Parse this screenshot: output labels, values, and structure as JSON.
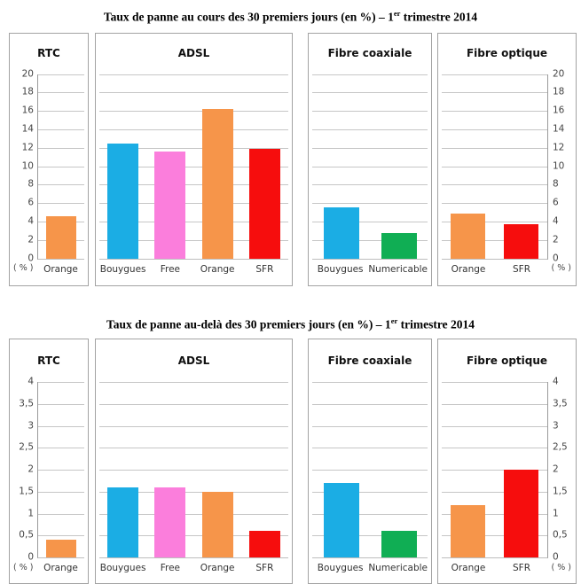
{
  "colors": {
    "Bouygues": "#1BADE4",
    "Free": "#FB7EDC",
    "Orange": "#F6954A",
    "SFR": "#F60D0D",
    "Numericable": "#10AE54"
  },
  "chart_data": [
    {
      "type": "bar",
      "title": "Taux de panne au cours des 30 premiers jours (en %) – 1er trimestre 2014",
      "title_prefix": "Taux de panne au cours des 30 premiers jours (en %) – 1",
      "title_sup": "er",
      "title_suffix": " trimestre 2014",
      "ylabel": "( % )",
      "ylim": [
        0,
        20
      ],
      "ytick_step": 2,
      "ytick_labels_top_to_bottom": [
        "20",
        "18",
        "16",
        "14",
        "12",
        "10",
        "8",
        "6",
        "4",
        "2",
        "0"
      ],
      "grid": true,
      "panels": [
        {
          "group": "RTC",
          "axis_side": "left",
          "categories": [
            "Orange"
          ],
          "values": [
            4.6
          ]
        },
        {
          "group": "ADSL",
          "axis_side": "none",
          "categories": [
            "Bouygues",
            "Free",
            "Orange",
            "SFR"
          ],
          "values": [
            12.5,
            11.6,
            16.2,
            11.9
          ]
        },
        {
          "group": "Fibre coaxiale",
          "axis_side": "none",
          "categories": [
            "Bouygues",
            "Numericable"
          ],
          "values": [
            5.5,
            2.7
          ]
        },
        {
          "group": "Fibre optique",
          "axis_side": "right",
          "categories": [
            "Orange",
            "SFR"
          ],
          "values": [
            4.9,
            3.7
          ]
        }
      ]
    },
    {
      "type": "bar",
      "title": "Taux de panne au-delà des 30 premiers jours (en %) – 1er trimestre 2014",
      "title_prefix": "Taux de panne au-delà des 30 premiers jours (en %) – 1",
      "title_sup": "er",
      "title_suffix": " trimestre 2014",
      "ylabel": "( % )",
      "ylim": [
        0,
        4
      ],
      "ytick_step": 0.5,
      "ytick_labels_top_to_bottom": [
        "4",
        "3,5",
        "3",
        "2,5",
        "2",
        "1,5",
        "1",
        "0,5",
        "0"
      ],
      "grid": true,
      "panels": [
        {
          "group": "RTC",
          "axis_side": "left",
          "categories": [
            "Orange"
          ],
          "values": [
            0.4
          ]
        },
        {
          "group": "ADSL",
          "axis_side": "none",
          "categories": [
            "Bouygues",
            "Free",
            "Orange",
            "SFR"
          ],
          "values": [
            1.6,
            1.6,
            1.5,
            0.6
          ]
        },
        {
          "group": "Fibre coaxiale",
          "axis_side": "none",
          "categories": [
            "Bouygues",
            "Numericable"
          ],
          "values": [
            1.7,
            0.6
          ]
        },
        {
          "group": "Fibre optique",
          "axis_side": "right",
          "categories": [
            "Orange",
            "SFR"
          ],
          "values": [
            1.2,
            2.0
          ]
        }
      ]
    }
  ]
}
